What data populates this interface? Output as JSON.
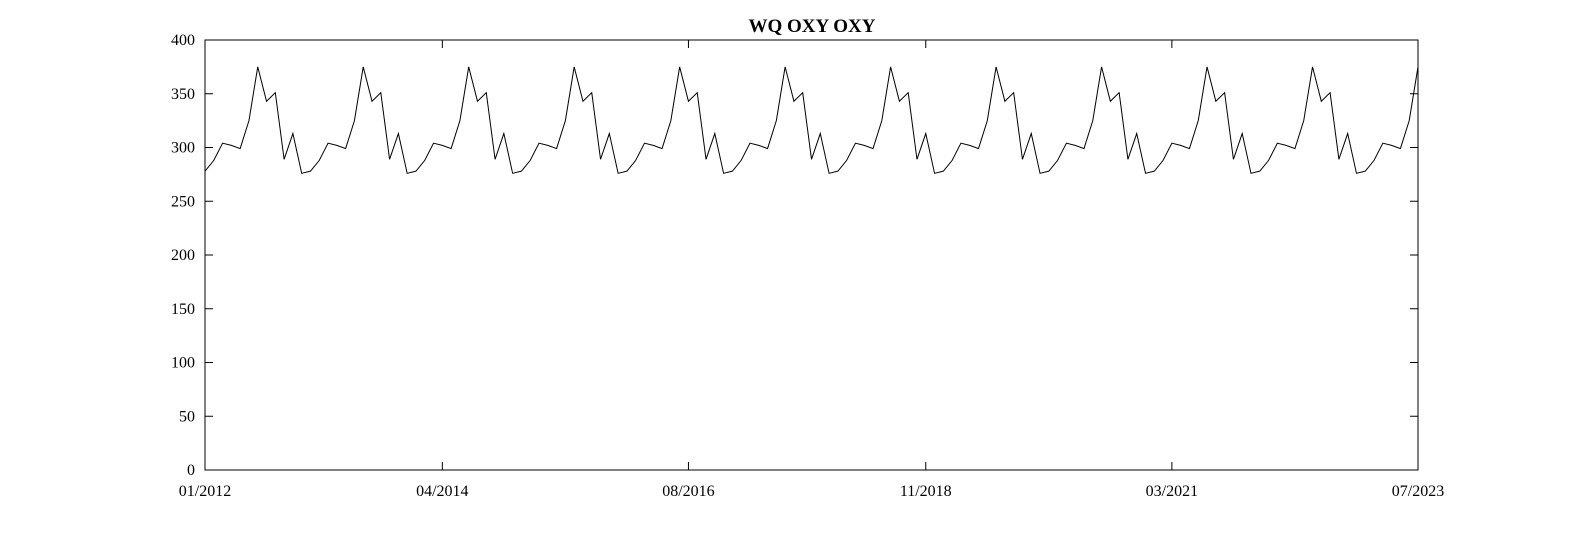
{
  "chart_data": {
    "type": "line",
    "title": "WQ OXY OXY",
    "xlabel": "",
    "ylabel": "",
    "x_start": "01/2012",
    "x_end": "07/2023",
    "x_ticks": [
      "01/2012",
      "04/2014",
      "08/2016",
      "11/2018",
      "03/2021",
      "07/2023"
    ],
    "y_ticks": [
      0,
      50,
      100,
      150,
      200,
      250,
      300,
      350,
      400
    ],
    "ylim": [
      0,
      400
    ],
    "grid": false,
    "series": [
      {
        "frequency": "monthly",
        "repeating_annual_values": [
          278,
          288,
          304,
          302,
          299,
          325,
          375,
          343,
          351,
          289,
          313,
          276
        ],
        "final_value": 375,
        "color": "#000000"
      }
    ]
  }
}
